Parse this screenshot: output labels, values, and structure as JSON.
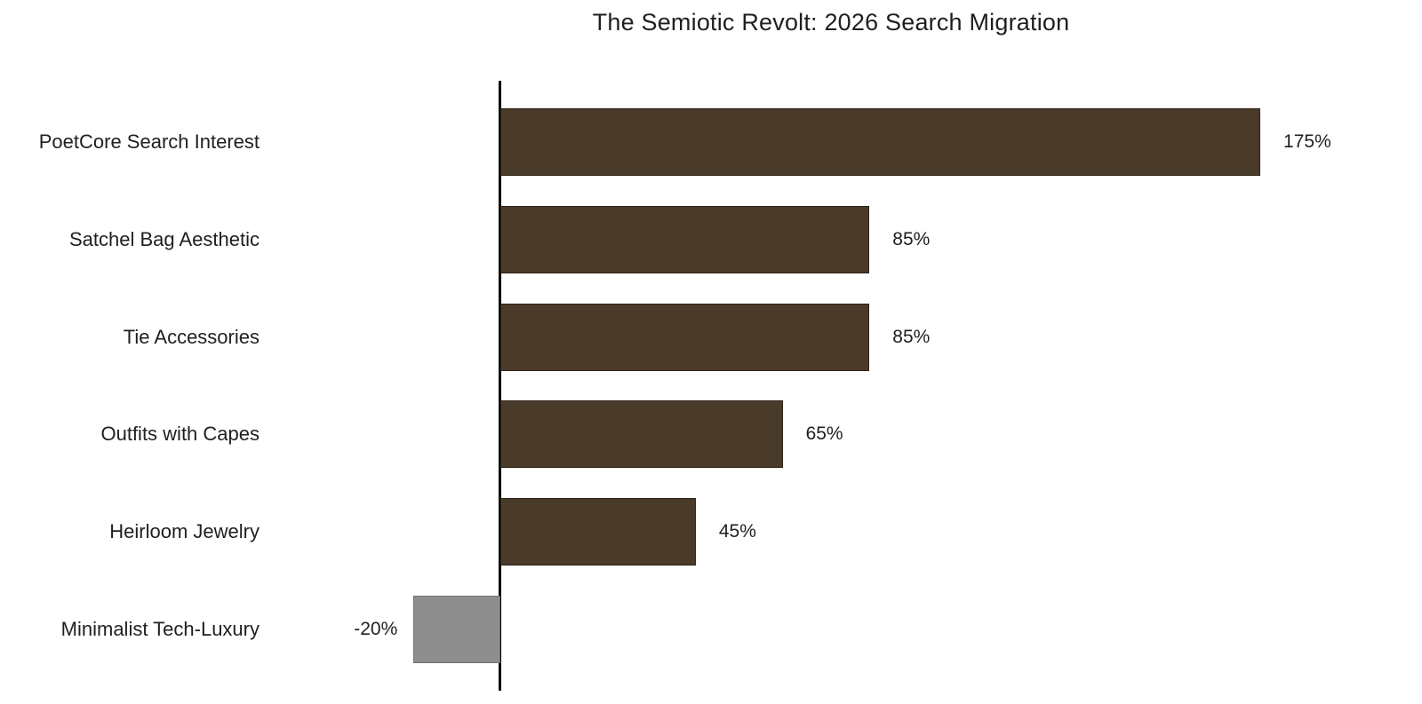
{
  "chart_data": {
    "type": "bar",
    "orientation": "horizontal",
    "title": "The Semiotic Revolt: 2026 Search Migration",
    "categories": [
      "PoetCore Search Interest",
      "Satchel Bag Aesthetic",
      "Tie Accessories",
      "Outfits with Capes",
      "Heirloom Jewelry",
      "Minimalist Tech-Luxury"
    ],
    "values": [
      175,
      85,
      85,
      65,
      45,
      -20
    ],
    "value_labels": [
      "175%",
      "85%",
      "85%",
      "65%",
      "45%",
      "-20%"
    ],
    "unit": "%",
    "xlabel": "",
    "ylabel": "",
    "grid": false,
    "legend": null,
    "ticks_visible": false,
    "zero_baseline_drawn": true,
    "colors": {
      "positive_bar": "#493a2a",
      "negative_bar": "#8e8e8e",
      "axis_line": "#000000",
      "text": "#1f1f1f",
      "background": "#ffffff"
    }
  }
}
